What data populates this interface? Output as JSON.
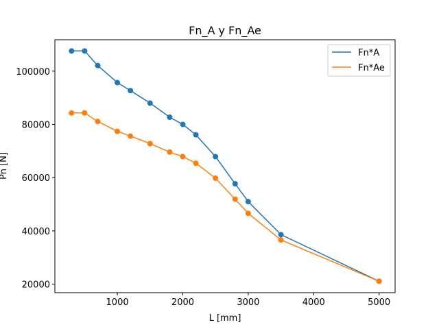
{
  "chart_data": {
    "type": "line",
    "title": "Fn_A y Fn_Ae",
    "xlabel": "L [mm]",
    "ylabel": "Pn [N]",
    "xlim": [
      45,
      5245
    ],
    "ylim": [
      16800,
      111800
    ],
    "xticks": [
      1000,
      2000,
      3000,
      4000,
      5000
    ],
    "yticks": [
      20000,
      40000,
      60000,
      80000,
      100000
    ],
    "grid": false,
    "legend_position": "top-right",
    "x": [
      300,
      500,
      700,
      1000,
      1200,
      1500,
      1800,
      2000,
      2200,
      2500,
      2800,
      3000,
      3500,
      5000
    ],
    "series": [
      {
        "name": "Fn*A",
        "color": "#1f77b4",
        "values": [
          107600,
          107600,
          102100,
          95700,
          92700,
          88000,
          82700,
          80000,
          76100,
          67900,
          57700,
          51000,
          38600,
          21100
        ]
      },
      {
        "name": "Fn*Ae",
        "color": "#ff7f0e",
        "values": [
          84300,
          84300,
          81100,
          77400,
          75600,
          72800,
          69600,
          67900,
          65400,
          59800,
          51900,
          46600,
          36600,
          21100
        ]
      }
    ]
  }
}
